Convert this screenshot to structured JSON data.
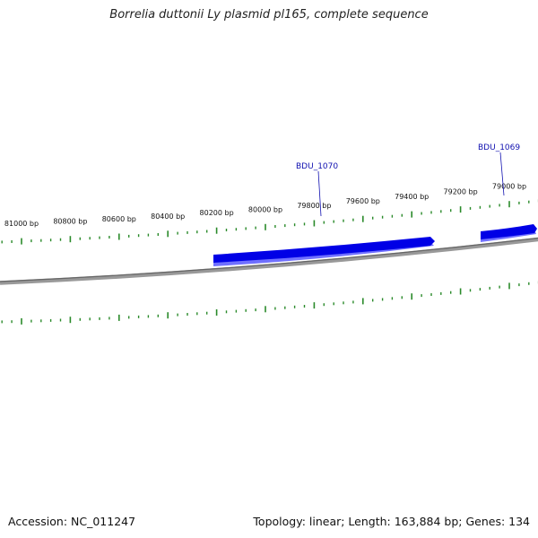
{
  "title": "Borrelia duttonii Ly plasmid pl165, complete sequence",
  "footer": {
    "accession": "Accession: NC_011247",
    "summary": "Topology: linear; Length: 163,884 bp; Genes: 134"
  },
  "colors": {
    "backbone": "#888888",
    "gene": "#0000e6",
    "gene_shadow": "#7070ff",
    "tick": "#2a8a2a",
    "gene_label": "#1010b0"
  },
  "map": {
    "topology": "linear",
    "strand_direction": "reverse (coordinates decrease left to right)",
    "tick_labels": [
      "81000 bp",
      "80800 bp",
      "80600 bp",
      "80400 bp",
      "80200 bp",
      "80000 bp",
      "79800 bp",
      "79600 bp",
      "79400 bp",
      "79200 bp",
      "79000 bp"
    ],
    "genes": [
      {
        "name": "BDU_1070",
        "strand": "forward"
      },
      {
        "name": "BDU_1069",
        "strand": "forward"
      }
    ]
  }
}
